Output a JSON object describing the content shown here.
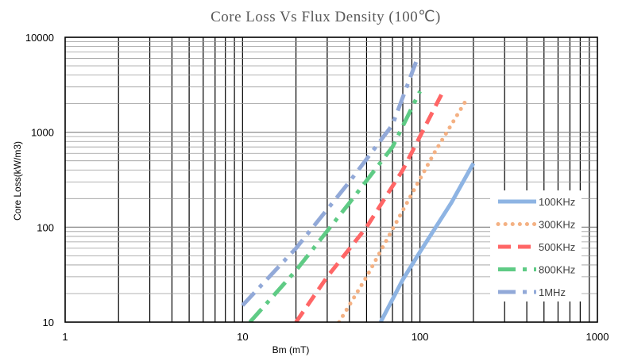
{
  "chart_data": {
    "type": "line",
    "title": "Core Loss Vs Flux Density (100℃)",
    "xlabel": "Bm (mT)",
    "ylabel": "Core Loss(kW/m3)",
    "x_scale": "log",
    "y_scale": "log",
    "xlim": [
      1,
      1000
    ],
    "ylim": [
      10,
      10000
    ],
    "x_ticks": [
      "1",
      "10",
      "100",
      "1000"
    ],
    "y_ticks": [
      "10",
      "100",
      "1000",
      "10000"
    ],
    "grid": true,
    "legend": "right",
    "series": [
      {
        "name": "100KHz",
        "color": "#8EB4E3",
        "style": "solid",
        "x": [
          60,
          80,
          100,
          150,
          200
        ],
        "y": [
          10,
          28,
          55,
          180,
          470
        ]
      },
      {
        "name": "300KHz",
        "color": "#F4B183",
        "style": "dotted",
        "x": [
          35,
          50,
          80,
          120,
          180
        ],
        "y": [
          10,
          30,
          150,
          600,
          2100
        ]
      },
      {
        "name": "500KHz",
        "color": "#FF6666",
        "style": "dashed",
        "x": [
          20,
          30,
          50,
          80,
          135
        ],
        "y": [
          10,
          30,
          100,
          400,
          2700
        ]
      },
      {
        "name": "800KHz",
        "color": "#5FCB85",
        "style": "dashdot",
        "x": [
          11,
          20,
          40,
          70,
          100
        ],
        "y": [
          10,
          35,
          180,
          700,
          2700
        ]
      },
      {
        "name": "1MHz",
        "color": "#92A9D8",
        "style": "dashdot",
        "x": [
          10,
          20,
          40,
          70,
          95
        ],
        "y": [
          15,
          60,
          300,
          1200,
          5500
        ]
      }
    ]
  }
}
